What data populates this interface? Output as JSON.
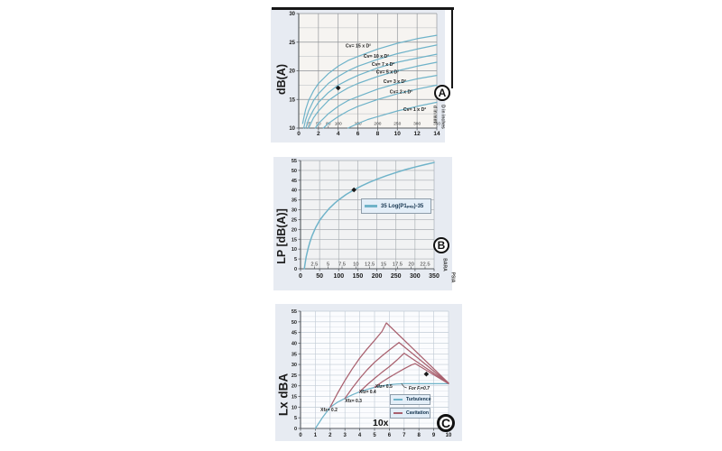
{
  "colors": {
    "curve_blue": "#6FB3C9",
    "cavitation_red": "#A9606E",
    "marker_black": "#1A1A1A",
    "frame_black": "#161616",
    "chart_margin_bg": "#E7EBF2",
    "plot_bg_a": "#F6F4F1",
    "plot_bg_b": "#F1F2F3",
    "plot_bg_c": "#FBFCFE",
    "grid_dark": "#8E9296",
    "grid_mid": "#A7ACB2",
    "grid_light_v": "#C2CCD6",
    "grid_light_h": "#D8DEE7",
    "axis": "#55595D",
    "text": "#1B1B1B",
    "legend_fill": "#E3EEF8",
    "legend_border": "#8E9DAA",
    "legend_text": "#12324D"
  },
  "chart_data": [
    {
      "type": "line",
      "badge": "A",
      "title": "",
      "ylabel": "dB(A)",
      "right_axis_label": "D in inches",
      "xlim": [
        0,
        14
      ],
      "ylim": [
        10,
        30
      ],
      "x_ticks": [
        0,
        2,
        4,
        6,
        8,
        10,
        12,
        14
      ],
      "y_ticks": [
        10,
        15,
        20,
        25,
        30
      ],
      "y_minor_step": 2.5,
      "secondary_scale": {
        "title": "d in mm",
        "labels": [
          "25",
          "50",
          "80",
          "100",
          "150",
          "200",
          "250",
          "300",
          "350"
        ],
        "x": [
          1,
          2,
          3,
          4,
          6,
          8,
          10,
          12,
          14
        ]
      },
      "series": [
        {
          "name": "Cv= 15 x D²",
          "color_key": "curve_blue",
          "x": [
            0.4,
            0.5,
            0.7,
            1,
            1.5,
            2,
            3,
            4,
            5,
            6,
            8,
            10,
            12,
            14
          ],
          "y": [
            10.8,
            11.7,
            13.2,
            14.8,
            16.5,
            17.8,
            19.5,
            20.8,
            21.8,
            22.5,
            23.8,
            24.8,
            25.6,
            26.2
          ]
        },
        {
          "name": "Cv= 10 x D²",
          "color_key": "curve_blue",
          "x": [
            0.5,
            0.7,
            1,
            1.5,
            2,
            3,
            4,
            5,
            6,
            8,
            10,
            12,
            14
          ],
          "y": [
            10,
            11.4,
            13,
            14.8,
            16,
            17.8,
            19,
            20,
            20.8,
            22,
            23,
            23.8,
            24.5
          ]
        },
        {
          "name": "Cv= 7 x D²",
          "color_key": "curve_blue",
          "x": [
            0.72,
            1,
            1.5,
            2,
            3,
            4,
            5,
            6,
            8,
            10,
            12,
            14
          ],
          "y": [
            10,
            11.5,
            13.2,
            14.5,
            16.2,
            17.5,
            18.4,
            19.2,
            20.5,
            21.5,
            22.2,
            22.9
          ]
        },
        {
          "name": "Cv= 5 x D²",
          "color_key": "curve_blue",
          "x": [
            1,
            1.5,
            2,
            3,
            4,
            5,
            6,
            8,
            10,
            12,
            14
          ],
          "y": [
            10,
            11.8,
            13,
            14.8,
            16,
            17,
            17.8,
            19,
            20,
            20.8,
            21.5
          ]
        },
        {
          "name": "Cv= 3 x D²",
          "color_key": "curve_blue",
          "x": [
            1.67,
            2,
            3,
            4,
            5,
            6,
            8,
            10,
            12,
            14
          ],
          "y": [
            10,
            10.8,
            12.5,
            13.8,
            14.8,
            15.5,
            16.8,
            17.8,
            18.6,
            19.2
          ]
        },
        {
          "name": "Cv= 2 x D²",
          "color_key": "curve_blue",
          "x": [
            2.5,
            3,
            4,
            5,
            6,
            8,
            10,
            12,
            14
          ],
          "y": [
            10,
            10.8,
            12,
            13,
            13.8,
            15,
            16,
            16.8,
            17.5
          ]
        },
        {
          "name": "Cv= 1 x D²",
          "color_key": "curve_blue",
          "x": [
            5,
            6,
            7,
            8,
            10,
            12,
            14
          ],
          "y": [
            10,
            10.8,
            11.5,
            12,
            13,
            13.8,
            14.5
          ]
        }
      ],
      "curve_labels": [
        {
          "text": "Cv= 15 x D²",
          "x": 4.75,
          "y": 24.1
        },
        {
          "text": "Cv= 10 x D²",
          "x": 6.58,
          "y": 22.3
        },
        {
          "text": "Cv= 7 x D²",
          "x": 7.4,
          "y": 20.9
        },
        {
          "text": "Cv= 5 x D²",
          "x": 7.85,
          "y": 19.5
        },
        {
          "text": "Cv= 3 x D²",
          "x": 8.58,
          "y": 17.9
        },
        {
          "text": "Cv= 2 x D²",
          "x": 9.22,
          "y": 16.1
        },
        {
          "text": "Cv= 1 x D²",
          "x": 10.6,
          "y": 13.0
        }
      ],
      "marker": {
        "x": 4,
        "y": 17
      }
    },
    {
      "type": "line",
      "badge": "B",
      "title": "",
      "ylabel": "LP [dB(A)]",
      "bottom_axis_label": "PSIA",
      "xlim": [
        0,
        350
      ],
      "ylim": [
        0,
        55
      ],
      "x_ticks": [
        0,
        50,
        100,
        150,
        200,
        250,
        300,
        350
      ],
      "y_ticks": [
        0,
        5,
        10,
        15,
        20,
        25,
        30,
        35,
        40,
        45,
        50,
        55
      ],
      "secondary_scale": {
        "title": "BARA",
        "labels": [
          "2.5",
          "5",
          "7.5",
          "10",
          "12.5",
          "15",
          "17.5",
          "20",
          "22.5"
        ],
        "x": [
          36.3,
          72.5,
          108.8,
          145,
          181.3,
          217.5,
          254,
          290,
          326.3
        ]
      },
      "legend": {
        "items": [
          {
            "label": "35 Log(P1ₚₛᵢₐ)-35",
            "color_key": "curve_blue"
          }
        ]
      },
      "series": [
        {
          "name": "35 Log(P1ₚₛᵢₐ)-35",
          "color_key": "curve_blue",
          "x": [
            10,
            12,
            15,
            20,
            25,
            30,
            40,
            50,
            60,
            75,
            90,
            100,
            120,
            140,
            160,
            180,
            200,
            225,
            250,
            275,
            300,
            325,
            350
          ],
          "y": [
            0,
            2.8,
            6.2,
            10.5,
            13.9,
            16.7,
            21.1,
            24.5,
            27.2,
            30.6,
            33.4,
            35,
            37.8,
            40.1,
            42.1,
            43.9,
            45.5,
            47.3,
            48.9,
            50.4,
            51.7,
            52.9,
            54
          ]
        }
      ],
      "marker": {
        "x": 140,
        "y": 40.1
      }
    },
    {
      "type": "line",
      "badge": "C",
      "title": "",
      "ylabel": "Lx dBA",
      "xlabel": "10x",
      "xlim": [
        0,
        10
      ],
      "ylim": [
        0,
        55
      ],
      "x_ticks": [
        0,
        1,
        2,
        3,
        4,
        5,
        6,
        7,
        8,
        9,
        10
      ],
      "y_ticks": [
        0,
        5,
        10,
        15,
        20,
        25,
        30,
        35,
        40,
        45,
        50,
        55
      ],
      "y_minor_step": 2.5,
      "legend": {
        "items": [
          {
            "label": "Turbulence",
            "color_key": "curve_blue"
          },
          {
            "label": "Cavitation",
            "color_key": "cavitation_red"
          }
        ]
      },
      "series": [
        {
          "name": "Turbulence",
          "color_key": "curve_blue",
          "x": [
            1,
            1.5,
            2,
            2.5,
            3,
            3.5,
            4,
            4.5,
            5,
            5.5,
            6,
            6.5,
            7,
            8,
            9,
            10
          ],
          "y": [
            0,
            5.3,
            9.9,
            12.3,
            14.1,
            15.8,
            17.2,
            18.3,
            19.3,
            20,
            20.5,
            20.8,
            21,
            21,
            21,
            21
          ]
        },
        {
          "name": "Cavitation Xfz= 0.2",
          "color_key": "cavitation_red",
          "x": [
            2,
            2.5,
            3,
            3.5,
            4,
            4.5,
            5,
            5.5,
            5.8,
            10
          ],
          "y": [
            9.9,
            16.5,
            22.5,
            28,
            33,
            37.3,
            41.3,
            45.5,
            49.5,
            21.3
          ]
        },
        {
          "name": "Cavitation Xfz= 0.3",
          "color_key": "cavitation_red",
          "x": [
            3,
            3.5,
            4,
            4.5,
            5,
            5.5,
            6,
            6.65,
            10
          ],
          "y": [
            14.1,
            19,
            23.5,
            27.5,
            31,
            34,
            36.8,
            40.3,
            21.2
          ]
        },
        {
          "name": "Cavitation Xfz= 0.4",
          "color_key": "cavitation_red",
          "x": [
            4,
            4.5,
            5,
            5.5,
            6,
            6.5,
            7,
            10
          ],
          "y": [
            17.2,
            20.5,
            23.5,
            26.3,
            29,
            32,
            35.3,
            21.2
          ]
        },
        {
          "name": "Cavitation Xfz= 0.5",
          "color_key": "cavitation_red",
          "x": [
            5,
            5.5,
            6,
            6.5,
            7,
            7.5,
            7.75,
            10
          ],
          "y": [
            19.3,
            21.8,
            24,
            26,
            28,
            29.8,
            30.4,
            21
          ]
        }
      ],
      "curve_labels": [
        {
          "text": "Xfz= 0.2",
          "x": 1.35,
          "y": 8.05
        },
        {
          "text": "Xfz= 0.3",
          "x": 3.0,
          "y": 12.3
        },
        {
          "text": "Xfz= 0.4",
          "x": 3.96,
          "y": 16.5
        },
        {
          "text": "Xfz= 0.5",
          "x": 5.06,
          "y": 19.1
        }
      ],
      "annotation": {
        "text": "For Fₗ=0.7",
        "x": 7.3,
        "y": 18.2
      },
      "marker": {
        "x": 8.5,
        "y": 25.5
      }
    }
  ]
}
